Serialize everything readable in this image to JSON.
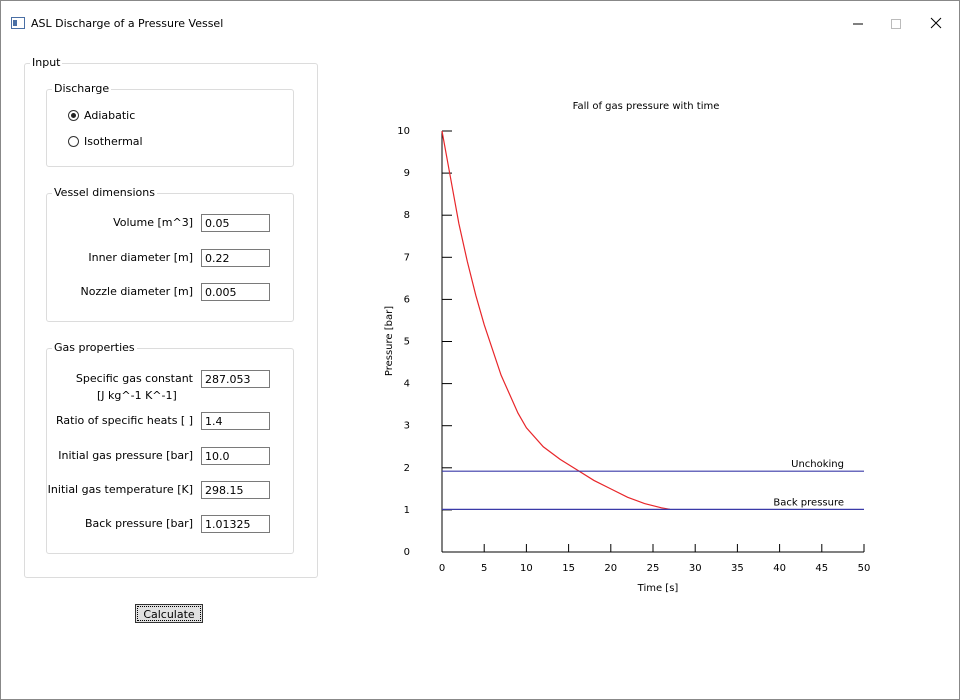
{
  "window": {
    "title": "ASL Discharge of a Pressure Vessel"
  },
  "input": {
    "title": "Input",
    "discharge": {
      "title": "Discharge",
      "options": [
        "Adiabatic",
        "Isothermal"
      ],
      "selected": 0
    },
    "vessel": {
      "title": "Vessel dimensions",
      "fields": [
        {
          "label": "Volume [m^3]",
          "value": "0.05"
        },
        {
          "label": "Inner diameter [m]",
          "value": "0.22"
        },
        {
          "label": "Nozzle diameter [m]",
          "value": "0.005"
        }
      ]
    },
    "gas": {
      "title": "Gas properties",
      "fields": [
        {
          "label": "Specific gas constant",
          "sublabel": "[J kg^-1 K^-1]",
          "value": "287.053"
        },
        {
          "label": "Ratio of specific heats [ ]",
          "value": "1.4"
        },
        {
          "label": "Initial gas pressure [bar]",
          "value": "10.0"
        },
        {
          "label": "Initial gas temperature [K]",
          "value": "298.15"
        },
        {
          "label": "Back pressure [bar]",
          "value": "1.01325"
        }
      ]
    }
  },
  "button": {
    "label": "Calculate"
  },
  "chart_data": {
    "type": "line",
    "title": "Fall of gas pressure with time",
    "xlabel": "Time [s]",
    "ylabel": "Pressure [bar]",
    "xlim": [
      0,
      50
    ],
    "ylim": [
      0,
      10
    ],
    "xticks": [
      0,
      5,
      10,
      15,
      20,
      25,
      30,
      35,
      40,
      45,
      50
    ],
    "yticks": [
      0,
      1,
      2,
      3,
      4,
      5,
      6,
      7,
      8,
      9,
      10
    ],
    "series": [
      {
        "color": "#e8262a",
        "x": [
          0,
          1,
          2,
          3,
          4,
          5,
          6,
          7,
          8,
          9,
          10,
          12,
          14,
          16,
          18,
          20,
          22,
          24,
          26,
          27
        ],
        "values": [
          10,
          8.9,
          7.8,
          6.9,
          6.1,
          5.4,
          4.8,
          4.2,
          3.75,
          3.3,
          2.95,
          2.5,
          2.2,
          1.95,
          1.7,
          1.5,
          1.3,
          1.15,
          1.05,
          1.01325
        ]
      },
      {
        "name": "Unchoking",
        "color": "#3a3aa8",
        "x": [
          0,
          50
        ],
        "values": [
          1.92,
          1.92
        ]
      },
      {
        "name": "Back pressure",
        "color": "#3a3aa8",
        "x": [
          0,
          50
        ],
        "values": [
          1.01325,
          1.01325
        ]
      }
    ]
  }
}
